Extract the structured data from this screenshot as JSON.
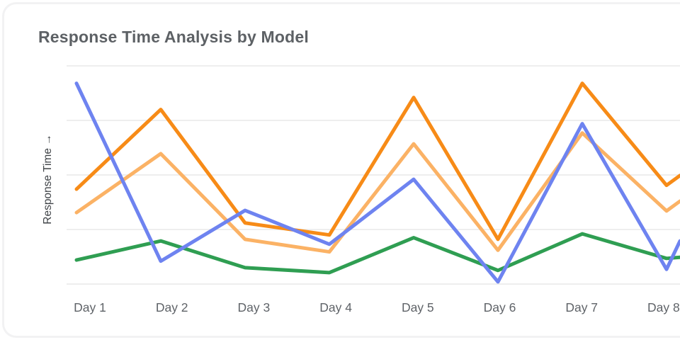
{
  "page": {
    "background": "#ffffff"
  },
  "card": {
    "title": "Response Time Analysis by Model",
    "title_color": "#5d6165",
    "background": "#ffffff",
    "border_color": "#f2f2f3"
  },
  "chart_data": {
    "type": "line",
    "title": "Response Time Analysis by Model",
    "xlabel": "",
    "ylabel": "Response Time →",
    "categories": [
      "Day 1",
      "Day 2",
      "Day 3",
      "Day 4",
      "Day 5",
      "Day 6",
      "Day 7",
      "Day 8"
    ],
    "ylim": [
      0,
      4
    ],
    "y_tick_labels_visible": false,
    "grid": true,
    "gridline_values": [
      0,
      1,
      2,
      3,
      4
    ],
    "gridline_color": "#eeeeee",
    "legend": "none",
    "clipped_right_edge": true,
    "axis_text_color": "#5f6368",
    "series": [
      {
        "id": "light-orange",
        "color": "#fbb265",
        "values": [
          1.31,
          2.39,
          0.82,
          0.59,
          2.57,
          0.62,
          2.77,
          1.34
        ],
        "edge_value": 1.52
      },
      {
        "id": "orange",
        "color": "#f78b17",
        "values": [
          1.74,
          3.2,
          1.12,
          0.9,
          3.42,
          0.82,
          3.68,
          1.81
        ],
        "edge_value": 1.99
      },
      {
        "id": "green",
        "color": "#2f9e52",
        "values": [
          0.44,
          0.79,
          0.3,
          0.21,
          0.85,
          0.25,
          0.92,
          0.47
        ],
        "edge_value": 0.49
      },
      {
        "id": "blue",
        "color": "#6e83f0",
        "values": [
          3.68,
          0.42,
          1.35,
          0.73,
          1.92,
          0.04,
          2.94,
          0.27
        ],
        "edge_value": 0.79
      }
    ]
  }
}
